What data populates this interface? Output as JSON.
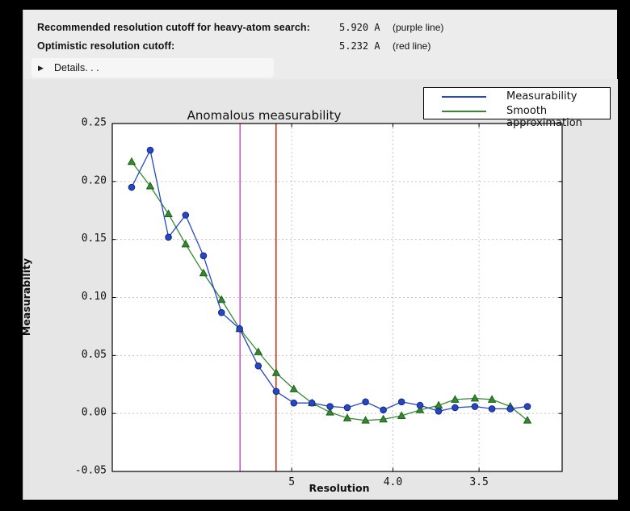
{
  "info": {
    "rows": [
      {
        "label": "Recommended resolution cutoff for heavy-atom search:",
        "value": "5.920 A",
        "note": "(purple line)"
      },
      {
        "label": "Optimistic resolution cutoff:",
        "value": "5.232 A",
        "note": "(red line)"
      }
    ]
  },
  "details": {
    "label": "Details. . .",
    "icon": "right-triangle"
  },
  "chart_data": {
    "type": "line",
    "title": "Anomalous measurability",
    "xlabel": "Resolution",
    "ylabel": "Measurability",
    "x_axis": {
      "scale": "reciprocal-square (1/d^2), resolution in Angstrom decreasing left to right",
      "ticks": [
        {
          "label": "5",
          "resolution_A": 5.0
        },
        {
          "label": "4.0",
          "resolution_A": 4.0
        },
        {
          "label": "3.5",
          "resolution_A": 3.5
        }
      ],
      "range_s": [
        0.00014,
        0.1001
      ]
    },
    "y_axis": {
      "tick_labels": [
        "-0.05",
        "0.00",
        "0.05",
        "0.10",
        "0.15",
        "0.20",
        "0.25"
      ],
      "tick_values": [
        -0.05,
        0.0,
        0.05,
        0.1,
        0.15,
        0.2,
        0.25
      ],
      "range": [
        -0.05,
        0.25
      ],
      "grid": true
    },
    "resolution_A": [
      15.0,
      10.8,
      8.9,
      7.8,
      7.0,
      6.4,
      5.93,
      5.54,
      5.23,
      4.97,
      4.74,
      4.54,
      4.37,
      4.21,
      4.07,
      3.94,
      3.82,
      3.71,
      3.62,
      3.52,
      3.44,
      3.36,
      3.29
    ],
    "series": [
      {
        "name": "Measurability",
        "color": "#2646c8",
        "marker": "circle",
        "marker_edge": "#16287a",
        "values": [
          0.195,
          0.227,
          0.152,
          0.171,
          0.136,
          0.087,
          0.073,
          0.041,
          0.019,
          0.009,
          0.009,
          0.006,
          0.005,
          0.01,
          0.003,
          0.01,
          0.007,
          0.002,
          0.005,
          0.006,
          0.004,
          0.004,
          0.006
        ]
      },
      {
        "name": "Smooth approximation",
        "color": "#348b2e",
        "marker": "triangle",
        "marker_edge": "#1c5c1a",
        "values": [
          0.217,
          0.196,
          0.172,
          0.146,
          0.121,
          0.098,
          0.073,
          0.053,
          0.035,
          0.021,
          0.009,
          0.001,
          -0.004,
          -0.006,
          -0.005,
          -0.002,
          0.003,
          0.007,
          0.012,
          0.013,
          0.012,
          0.006,
          -0.006
        ]
      }
    ],
    "vlines": [
      {
        "name": "recommended-cutoff-line",
        "resolution_A": 5.92,
        "color": "#c85ac8",
        "meaning": "purple line"
      },
      {
        "name": "optimistic-cutoff-line",
        "resolution_A": 5.232,
        "color": "#cf3a12",
        "meaning": "red line"
      }
    ],
    "legend": {
      "position": "upper right",
      "entries": [
        "Measurability",
        "Smooth approximation"
      ]
    },
    "colors": {
      "plot_bg": "#ffffff",
      "figure_bg": "#e6e6e6",
      "grid": "#c4c4c4",
      "frame": "#000000"
    }
  }
}
